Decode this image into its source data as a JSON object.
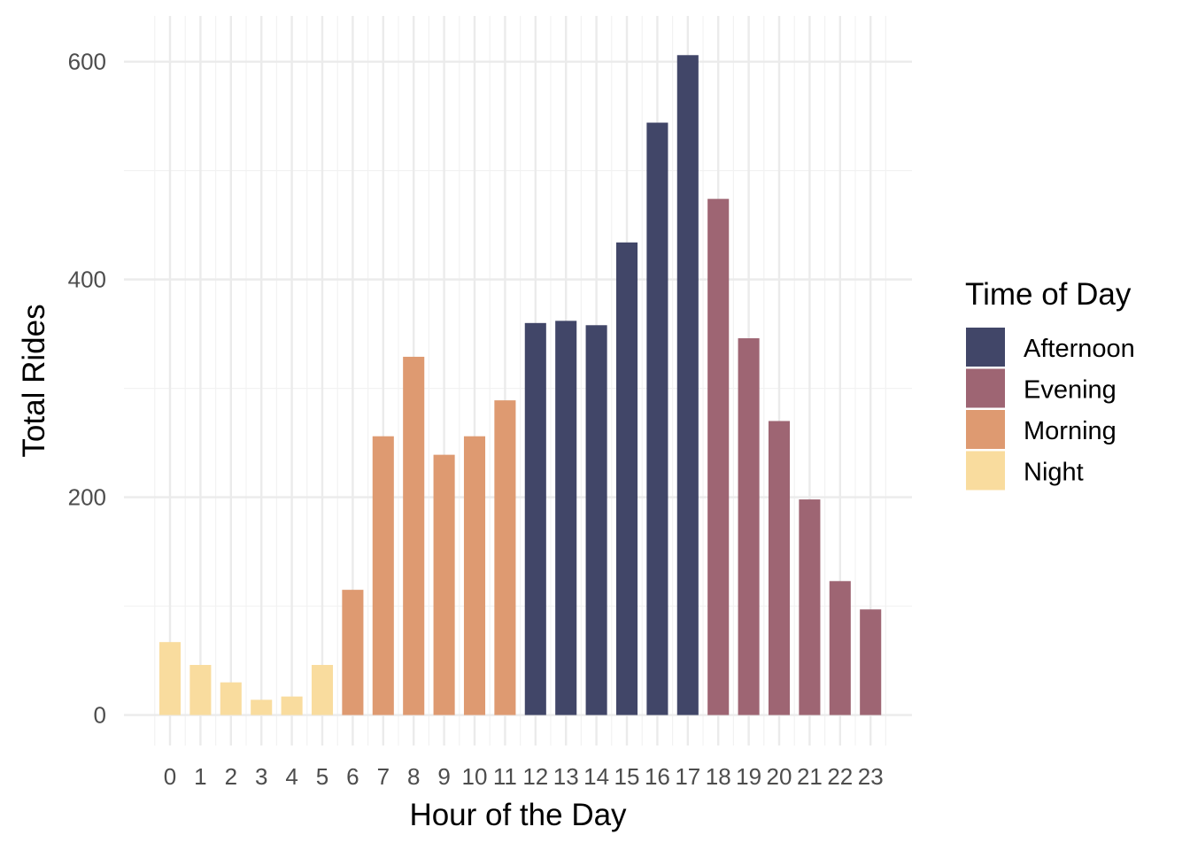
{
  "chart_data": {
    "type": "bar",
    "xlabel": "Hour of the Day",
    "ylabel": "Total Rides",
    "ylim": [
      -28,
      642
    ],
    "y_ticks": [
      0,
      200,
      400,
      600
    ],
    "grid": true,
    "legend": {
      "title": "Time of Day",
      "position": "right",
      "entries": [
        {
          "name": "Afternoon",
          "color": "#414668"
        },
        {
          "name": "Evening",
          "color": "#9e6573"
        },
        {
          "name": "Morning",
          "color": "#de9a71"
        },
        {
          "name": "Night",
          "color": "#f9dc9e"
        }
      ]
    },
    "categories": [
      "0",
      "1",
      "2",
      "3",
      "4",
      "5",
      "6",
      "7",
      "8",
      "9",
      "10",
      "11",
      "12",
      "13",
      "14",
      "15",
      "16",
      "17",
      "18",
      "19",
      "20",
      "21",
      "22",
      "23"
    ],
    "values": [
      67,
      46,
      30,
      14,
      17,
      46,
      115,
      256,
      329,
      239,
      256,
      289,
      360,
      362,
      358,
      434,
      544,
      606,
      474,
      346,
      270,
      198,
      123,
      97
    ],
    "groups": [
      "Night",
      "Night",
      "Night",
      "Night",
      "Night",
      "Night",
      "Morning",
      "Morning",
      "Morning",
      "Morning",
      "Morning",
      "Morning",
      "Afternoon",
      "Afternoon",
      "Afternoon",
      "Afternoon",
      "Afternoon",
      "Afternoon",
      "Evening",
      "Evening",
      "Evening",
      "Evening",
      "Evening",
      "Evening"
    ]
  }
}
